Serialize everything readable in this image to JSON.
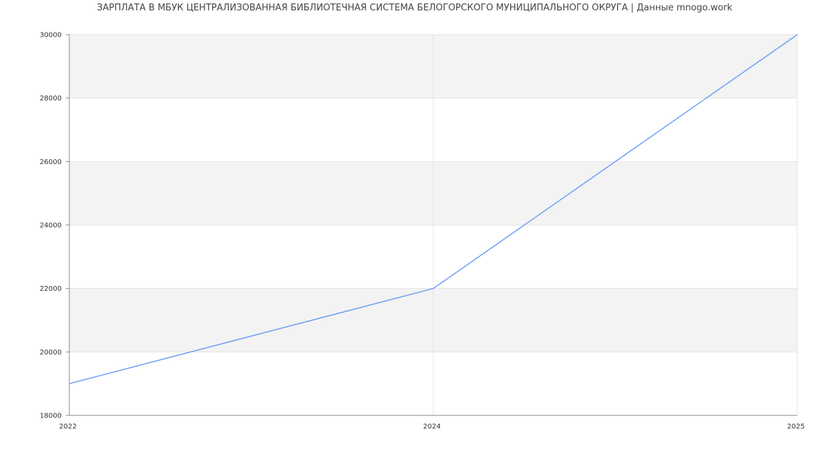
{
  "chart_data": {
    "type": "line",
    "title": "ЗАРПЛАТА В МБУК ЦЕНТРАЛИЗОВАННАЯ БИБЛИОТЕЧНАЯ СИСТЕМА БЕЛОГОРСКОГО МУНИЦИПАЛЬНОГО ОКРУГА | Данные mnogo.work",
    "categories": [
      "2022",
      "2024",
      "2025"
    ],
    "values": [
      19000,
      22000,
      30000
    ],
    "ylim": [
      18000,
      30000
    ],
    "yticks": [
      "18000",
      "20000",
      "22000",
      "24000",
      "26000",
      "28000",
      "30000"
    ],
    "grid": true,
    "legend": "none",
    "colors": {
      "line": "#6f9ef5",
      "band": "#f3f3f3",
      "grid": "#e3e3e3",
      "axis": "#888888"
    }
  }
}
